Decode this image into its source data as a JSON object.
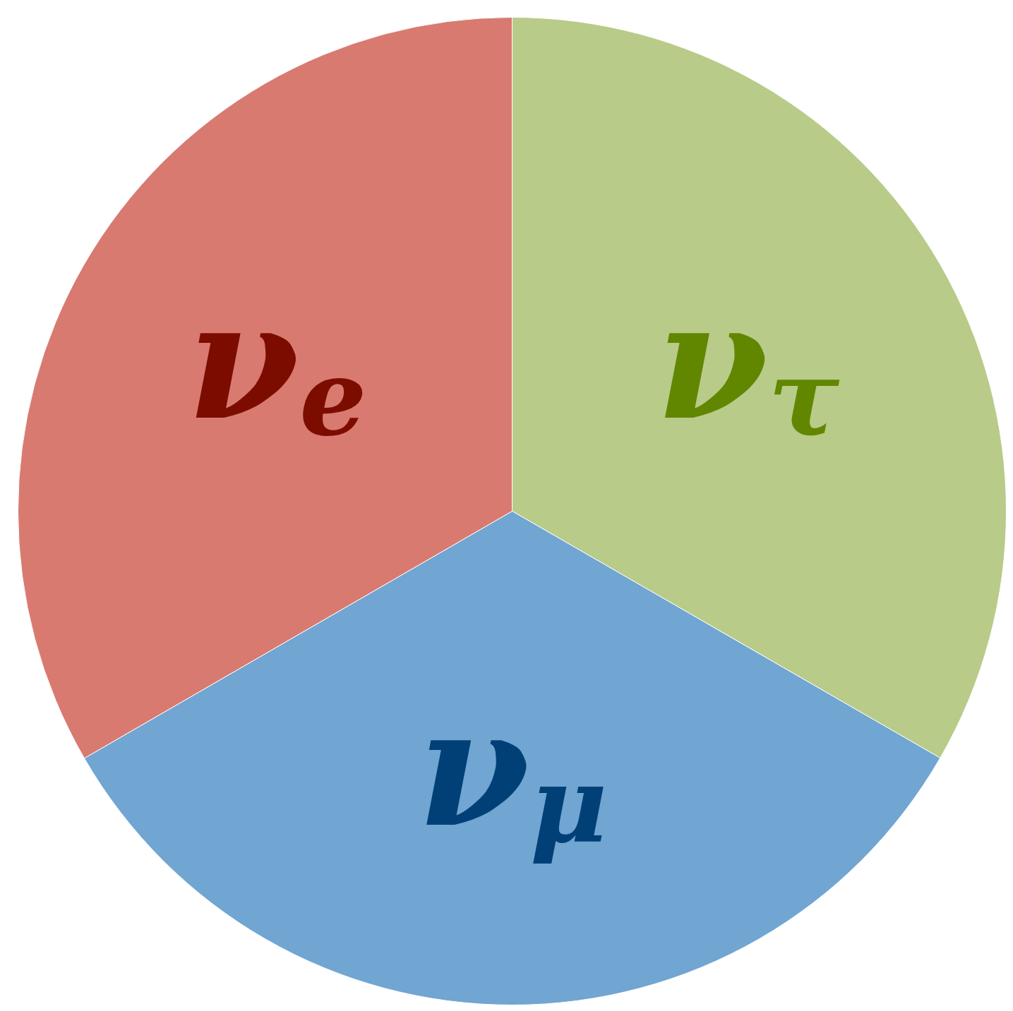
{
  "chart_data": {
    "type": "pie",
    "categories": [
      "ν$_{τ}$",
      "ν$_{μ}$",
      "ν$_{e}$"
    ],
    "values": [
      33.33,
      33.33,
      33.34
    ],
    "colors": [
      "#b8cb88",
      "#71a5d2",
      "#d87a70"
    ]
  }
}
